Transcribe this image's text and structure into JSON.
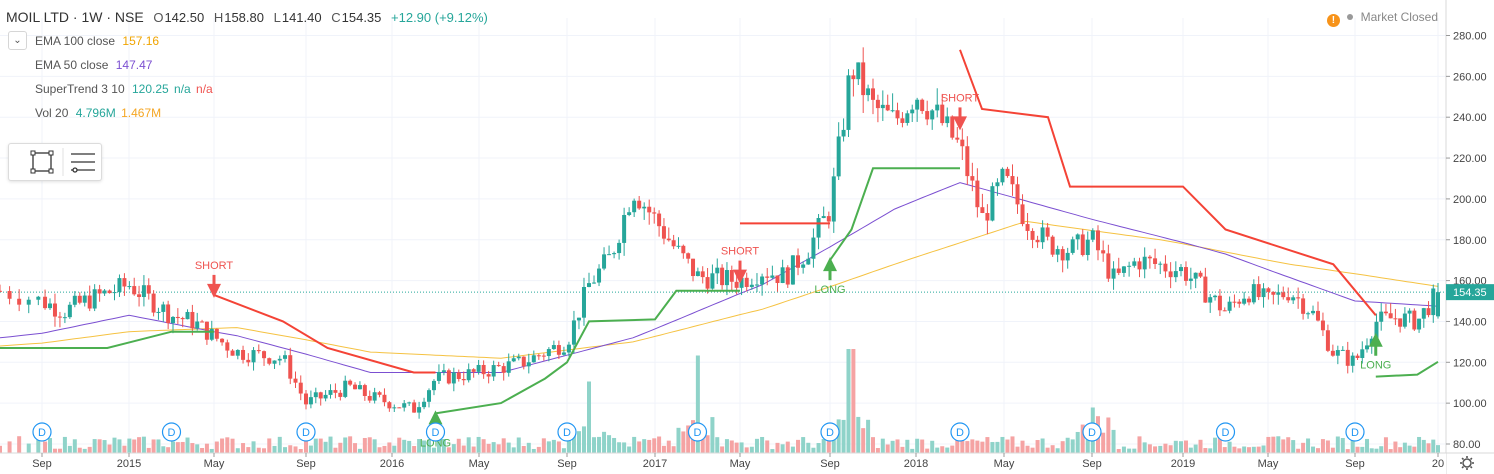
{
  "header": {
    "symbol": "MOIL LTD · 1W · NSE",
    "o_label": "O",
    "o_value": "142.50",
    "h_label": "H",
    "h_value": "158.80",
    "l_label": "L",
    "l_value": "141.40",
    "c_label": "C",
    "c_value": "154.35",
    "change": "+12.90 (+9.12%)"
  },
  "indicators": {
    "ema100": {
      "name": "EMA 100 close",
      "value": "157.16",
      "color": "#f5a623"
    },
    "ema50": {
      "name": "EMA 50 close",
      "value": "147.47",
      "color": "#7b4fd1"
    },
    "supertrend": {
      "name": "SuperTrend 3 10",
      "value": "120.25",
      "na1": "n/a",
      "na2": "n/a",
      "color_value": "#26a69a",
      "color_na1": "#26a69a",
      "color_na2": "#ef5350"
    },
    "volume": {
      "name": "Vol 20",
      "value": "4.796M",
      "ma": "1.467M",
      "color_value": "#26a69a",
      "color_ma": "#f5a623"
    }
  },
  "status": {
    "market": "Market Closed",
    "warning": "!"
  },
  "colors": {
    "up": "#26a69a",
    "down": "#ef5350",
    "supertrend_up": "#4caf50",
    "supertrend_down": "#f44336",
    "ema100": "#f5c242",
    "ema50": "#7b4fd1",
    "vol_up": "#8fd3c9",
    "vol_down": "#f5a3a3",
    "dividend": "#2196f3"
  },
  "chart_data": {
    "type": "candlestick",
    "y_axis": {
      "min": 80,
      "max": 290,
      "ticks": [
        80,
        100,
        120,
        140,
        160,
        180,
        200,
        220,
        240,
        260,
        280
      ],
      "tick_labels": [
        "80.00",
        "100.00",
        "120.00",
        "140.00",
        "160.00",
        "180.00",
        "200.00",
        "220.00",
        "240.00",
        "260.00",
        "280.00"
      ]
    },
    "last_price": {
      "value": 154.35,
      "label": "154.35"
    },
    "x_axis": {
      "ticks": [
        {
          "label": "Sep",
          "date": "2014-09"
        },
        {
          "label": "2015",
          "date": "2015-01"
        },
        {
          "label": "May",
          "date": "2015-05"
        },
        {
          "label": "Sep",
          "date": "2015-09"
        },
        {
          "label": "2016",
          "date": "2016-01"
        },
        {
          "label": "May",
          "date": "2016-05"
        },
        {
          "label": "Sep",
          "date": "2016-09"
        },
        {
          "label": "2017",
          "date": "2017-01"
        },
        {
          "label": "May",
          "date": "2017-05"
        },
        {
          "label": "Sep",
          "date": "2017-09"
        },
        {
          "label": "2018",
          "date": "2018-01"
        },
        {
          "label": "May",
          "date": "2018-05"
        },
        {
          "label": "Sep",
          "date": "2018-09"
        },
        {
          "label": "2019",
          "date": "2019-01"
        },
        {
          "label": "May",
          "date": "2019-05"
        },
        {
          "label": "Sep",
          "date": "2019-09"
        },
        {
          "label": "20",
          "date": "2020-01"
        }
      ]
    },
    "price_path": [
      {
        "date": "2014-08",
        "close": 155
      },
      {
        "date": "2014-10",
        "close": 145
      },
      {
        "date": "2014-11",
        "close": 150
      },
      {
        "date": "2015-01",
        "close": 158
      },
      {
        "date": "2015-03",
        "close": 143
      },
      {
        "date": "2015-04",
        "close": 140
      },
      {
        "date": "2015-06",
        "close": 125
      },
      {
        "date": "2015-08",
        "close": 122
      },
      {
        "date": "2015-09",
        "close": 100
      },
      {
        "date": "2015-11",
        "close": 108
      },
      {
        "date": "2015-12",
        "close": 103
      },
      {
        "date": "2016-02",
        "close": 97
      },
      {
        "date": "2016-03",
        "close": 112
      },
      {
        "date": "2016-05",
        "close": 115
      },
      {
        "date": "2016-07",
        "close": 120
      },
      {
        "date": "2016-09",
        "close": 130
      },
      {
        "date": "2016-10",
        "close": 158
      },
      {
        "date": "2016-11",
        "close": 172
      },
      {
        "date": "2016-12",
        "close": 205
      },
      {
        "date": "2017-02",
        "close": 175
      },
      {
        "date": "2017-03",
        "close": 162
      },
      {
        "date": "2017-05",
        "close": 160
      },
      {
        "date": "2017-06",
        "close": 165
      },
      {
        "date": "2017-07",
        "close": 162
      },
      {
        "date": "2017-08",
        "close": 175
      },
      {
        "date": "2017-09",
        "close": 195
      },
      {
        "date": "2017-10",
        "close": 265
      },
      {
        "date": "2017-11",
        "close": 245
      },
      {
        "date": "2017-12",
        "close": 238
      },
      {
        "date": "2018-01",
        "close": 252
      },
      {
        "date": "2018-02",
        "close": 240
      },
      {
        "date": "2018-03",
        "close": 225
      },
      {
        "date": "2018-04",
        "close": 190
      },
      {
        "date": "2018-05",
        "close": 210
      },
      {
        "date": "2018-06",
        "close": 190
      },
      {
        "date": "2018-07",
        "close": 178
      },
      {
        "date": "2018-08",
        "close": 175
      },
      {
        "date": "2018-09",
        "close": 180
      },
      {
        "date": "2018-10",
        "close": 160
      },
      {
        "date": "2018-11",
        "close": 170
      },
      {
        "date": "2019-01",
        "close": 165
      },
      {
        "date": "2019-02",
        "close": 155
      },
      {
        "date": "2019-03",
        "close": 145
      },
      {
        "date": "2019-04",
        "close": 155
      },
      {
        "date": "2019-05",
        "close": 150
      },
      {
        "date": "2019-06",
        "close": 155
      },
      {
        "date": "2019-07",
        "close": 145
      },
      {
        "date": "2019-08",
        "close": 125
      },
      {
        "date": "2019-09",
        "close": 120
      },
      {
        "date": "2019-10",
        "close": 140
      },
      {
        "date": "2019-11",
        "close": 142
      },
      {
        "date": "2019-12",
        "close": 140
      },
      {
        "date": "2020-01",
        "close": 154.35
      }
    ],
    "ema100_path": [
      {
        "date": "2014-08",
        "value": 128
      },
      {
        "date": "2015-01",
        "value": 135
      },
      {
        "date": "2015-06",
        "value": 137
      },
      {
        "date": "2015-12",
        "value": 125
      },
      {
        "date": "2016-06",
        "value": 122
      },
      {
        "date": "2016-12",
        "value": 130
      },
      {
        "date": "2017-06",
        "value": 146
      },
      {
        "date": "2017-12",
        "value": 168
      },
      {
        "date": "2018-06",
        "value": 189
      },
      {
        "date": "2018-12",
        "value": 180
      },
      {
        "date": "2019-06",
        "value": 168
      },
      {
        "date": "2020-01",
        "value": 157.16
      }
    ],
    "ema50_path": [
      {
        "date": "2014-08",
        "value": 132
      },
      {
        "date": "2015-01",
        "value": 143
      },
      {
        "date": "2015-06",
        "value": 133
      },
      {
        "date": "2015-12",
        "value": 115
      },
      {
        "date": "2016-06",
        "value": 115
      },
      {
        "date": "2016-12",
        "value": 132
      },
      {
        "date": "2017-06",
        "value": 158
      },
      {
        "date": "2017-12",
        "value": 195
      },
      {
        "date": "2018-03",
        "value": 208
      },
      {
        "date": "2018-09",
        "value": 190
      },
      {
        "date": "2019-03",
        "value": 173
      },
      {
        "date": "2019-09",
        "value": 150
      },
      {
        "date": "2020-01",
        "value": 147.47
      }
    ],
    "supertrend_segments": [
      {
        "trend": "up",
        "points": [
          {
            "date": "2014-08",
            "value": 127
          },
          {
            "date": "2014-12",
            "value": 127
          },
          {
            "date": "2015-03",
            "value": 135
          },
          {
            "date": "2015-05",
            "value": 135
          }
        ]
      },
      {
        "trend": "down",
        "points": [
          {
            "date": "2015-05",
            "value": 153
          },
          {
            "date": "2015-08",
            "value": 140
          },
          {
            "date": "2015-10",
            "value": 127
          },
          {
            "date": "2016-02",
            "value": 115
          },
          {
            "date": "2016-03",
            "value": 115
          }
        ]
      },
      {
        "trend": "up",
        "points": [
          {
            "date": "2016-03",
            "value": 95
          },
          {
            "date": "2016-06",
            "value": 100
          },
          {
            "date": "2016-08",
            "value": 112
          },
          {
            "date": "2016-09",
            "value": 120
          },
          {
            "date": "2016-10",
            "value": 140
          },
          {
            "date": "2017-01",
            "value": 141
          },
          {
            "date": "2017-02",
            "value": 155
          },
          {
            "date": "2017-05",
            "value": 155
          }
        ]
      },
      {
        "trend": "down",
        "points": [
          {
            "date": "2017-05",
            "value": 188
          },
          {
            "date": "2017-09",
            "value": 188
          }
        ]
      },
      {
        "trend": "up",
        "points": [
          {
            "date": "2017-09",
            "value": 170
          },
          {
            "date": "2017-10",
            "value": 185
          },
          {
            "date": "2017-11",
            "value": 215
          },
          {
            "date": "2018-03",
            "value": 215
          }
        ]
      },
      {
        "trend": "down",
        "points": [
          {
            "date": "2018-03",
            "value": 273
          },
          {
            "date": "2018-04",
            "value": 244
          },
          {
            "date": "2018-07",
            "value": 240
          },
          {
            "date": "2018-08",
            "value": 206
          },
          {
            "date": "2019-01",
            "value": 206
          },
          {
            "date": "2019-03",
            "value": 185
          },
          {
            "date": "2019-08",
            "value": 168
          },
          {
            "date": "2019-10",
            "value": 143
          }
        ]
      },
      {
        "trend": "up",
        "points": [
          {
            "date": "2019-10",
            "value": 113
          },
          {
            "date": "2019-12",
            "value": 114
          },
          {
            "date": "2020-01",
            "value": 120.25
          }
        ]
      }
    ],
    "signals": [
      {
        "type": "short",
        "label": "SHORT",
        "date": "2015-05",
        "value": 153
      },
      {
        "type": "long",
        "label": "LONG",
        "date": "2016-03",
        "value": 95
      },
      {
        "type": "short",
        "label": "SHORT",
        "date": "2017-05",
        "value": 160
      },
      {
        "type": "long",
        "label": "LONG",
        "date": "2017-09",
        "value": 170
      },
      {
        "type": "short",
        "label": "SHORT",
        "date": "2018-03",
        "value": 235
      },
      {
        "type": "long",
        "label": "LONG",
        "date": "2019-10",
        "value": 133
      }
    ],
    "dividend_markers": [
      {
        "label": "D",
        "date": "2014-09"
      },
      {
        "label": "D",
        "date": "2015-03"
      },
      {
        "label": "D",
        "date": "2015-09"
      },
      {
        "label": "D",
        "date": "2016-03"
      },
      {
        "label": "D",
        "date": "2016-09"
      },
      {
        "label": "D",
        "date": "2017-03"
      },
      {
        "label": "D",
        "date": "2017-09"
      },
      {
        "label": "D",
        "date": "2018-03"
      },
      {
        "label": "D",
        "date": "2018-09"
      },
      {
        "label": "D",
        "date": "2019-03"
      },
      {
        "label": "D",
        "date": "2019-09"
      }
    ],
    "volume_spikes": [
      {
        "date": "2016-10",
        "relative": 0.55
      },
      {
        "date": "2017-03",
        "relative": 0.75
      },
      {
        "date": "2017-10",
        "relative": 0.8
      },
      {
        "date": "2018-09",
        "relative": 0.35
      }
    ]
  }
}
